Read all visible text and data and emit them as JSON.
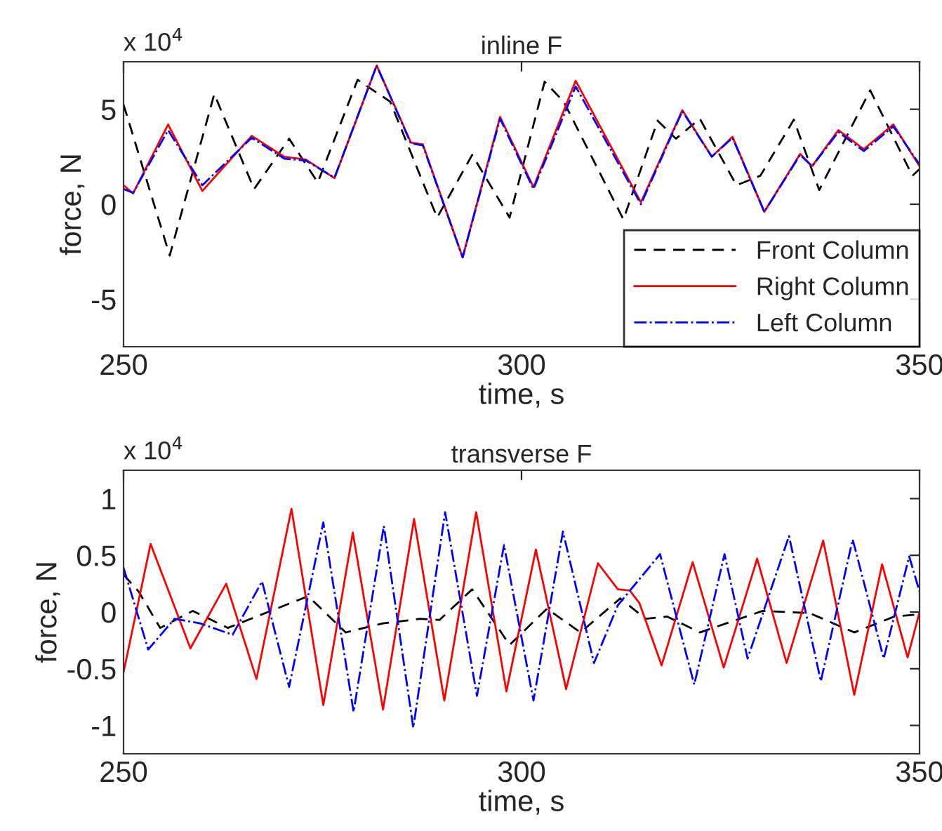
{
  "chart_data": [
    {
      "type": "line",
      "title": "inline F",
      "xlabel": "time, s",
      "ylabel": "force, N",
      "annotations": [
        "x 10$^{4}$"
      ],
      "xlim": [
        250,
        350
      ],
      "xticks": [
        250,
        300,
        350
      ],
      "ylim": [
        -7.5,
        7.5
      ],
      "yticks": [
        -5,
        0,
        5
      ],
      "legend": "bottom right",
      "grid": false,
      "series": [
        {
          "name": "Front Column",
          "color": "#000000",
          "line_style": "dashed",
          "x": [
            250,
            255.8,
            261.4,
            266.4,
            270.8,
            274.4,
            279.4,
            283.5,
            289.4,
            293.8,
            298.5,
            302.9,
            305.3,
            312.8,
            317.1,
            319.4,
            322.4,
            327.0,
            330.0,
            334.2,
            337.4,
            343.8,
            349.1,
            350
          ],
          "values": [
            5.25,
            -2.7,
            5.8,
            0.8,
            3.45,
            1.15,
            6.55,
            5.4,
            -0.7,
            2.6,
            -0.7,
            6.45,
            5.4,
            -0.8,
            4.4,
            3.45,
            4.5,
            1.0,
            1.5,
            4.45,
            0.75,
            6.0,
            1.5,
            1.85
          ]
        },
        {
          "name": "Right Column",
          "color": "#ff0000",
          "line_style": "solid",
          "x": [
            250,
            251.2,
            255.6,
            259.9,
            266.1,
            270.2,
            272.9,
            276.5,
            281.8,
            286.1,
            287.6,
            292.6,
            297.3,
            301.5,
            306.8,
            315.0,
            320.2,
            323.9,
            326.5,
            330.5,
            335.0,
            336.5,
            339.8,
            343.0,
            346.7,
            350
          ],
          "values": [
            1.0,
            0.57,
            4.2,
            0.7,
            3.6,
            2.5,
            2.35,
            1.37,
            7.3,
            3.25,
            3.15,
            -2.8,
            4.6,
            0.9,
            6.5,
            0.1,
            4.95,
            2.5,
            3.55,
            -0.4,
            2.65,
            2.0,
            3.9,
            2.9,
            4.2,
            2.0
          ]
        },
        {
          "name": "Left Column",
          "color": "#0000ff",
          "line_style": "dashdot",
          "x": [
            250,
            251.2,
            255.6,
            259.9,
            266.1,
            270.2,
            272.9,
            276.5,
            281.8,
            286.1,
            287.6,
            292.6,
            297.3,
            301.5,
            306.8,
            315.0,
            320.2,
            323.9,
            326.5,
            330.5,
            335.0,
            336.5,
            339.8,
            343.0,
            346.7,
            350
          ],
          "values": [
            0.8,
            0.6,
            3.9,
            1.0,
            3.5,
            2.4,
            2.3,
            1.4,
            7.3,
            3.2,
            3.1,
            -2.8,
            4.5,
            0.8,
            6.2,
            0.0,
            4.9,
            2.5,
            3.5,
            -0.4,
            2.6,
            2.0,
            3.8,
            2.8,
            4.1,
            2.1
          ]
        }
      ]
    },
    {
      "type": "line",
      "title": "transverse F",
      "xlabel": "time, s",
      "ylabel": "force, N",
      "annotations": [
        "x 10$^{4}$"
      ],
      "xlim": [
        250,
        350
      ],
      "xticks": [
        250,
        300,
        350
      ],
      "ylim": [
        -1.25,
        1.25
      ],
      "yticks": [
        -1,
        -0.5,
        0,
        0.5,
        1
      ],
      "legend": false,
      "grid": false,
      "series": [
        {
          "color": "#000000",
          "line_style": "dashed",
          "x": [
            250,
            251.9,
            254.6,
            258.7,
            263.1,
            273.2,
            277.9,
            282.6,
            287.3,
            289.7,
            293.8,
            298.5,
            303.2,
            307.4,
            312.4,
            315.6,
            318.3,
            322.4,
            330.3,
            336.2,
            341.8,
            346.8,
            350
          ],
          "values": [
            0.33,
            0.18,
            -0.14,
            0.01,
            -0.14,
            0.14,
            -0.18,
            -0.1,
            -0.06,
            -0.07,
            0.2,
            -0.29,
            0.03,
            -0.18,
            0.12,
            -0.06,
            -0.04,
            -0.18,
            0.01,
            -0.01,
            -0.18,
            -0.04,
            -0.02
          ]
        },
        {
          "color": "#ff0000",
          "line_style": "solid",
          "x": [
            250,
            253.4,
            258.4,
            262.9,
            266.7,
            271.1,
            275.1,
            278.8,
            282.6,
            286.5,
            290.3,
            294.3,
            298.1,
            301.8,
            305.6,
            309.6,
            312.1,
            313.6,
            314.8,
            317.6,
            321.5,
            325.4,
            329.6,
            333.3,
            337.9,
            341.8,
            345.3,
            348.5,
            350
          ],
          "values": [
            -0.53,
            0.6,
            -0.32,
            0.25,
            -0.59,
            0.91,
            -0.82,
            0.7,
            -0.86,
            0.82,
            -0.78,
            0.88,
            -0.7,
            0.55,
            -0.68,
            0.43,
            0.2,
            0.19,
            0.08,
            -0.47,
            0.44,
            -0.49,
            0.47,
            -0.45,
            0.63,
            -0.73,
            0.42,
            -0.4,
            0.0
          ]
        },
        {
          "color": "#0000ff",
          "line_style": "dashdot",
          "x": [
            250,
            253.1,
            256.4,
            259.6,
            263.7,
            267.4,
            270.8,
            275.1,
            278.9,
            282.7,
            286.4,
            290.4,
            294.4,
            297.8,
            301.5,
            305.2,
            309.1,
            312.1,
            317.4,
            321.7,
            325.5,
            328.4,
            333.6,
            337.6,
            341.6,
            345.5,
            348.7,
            350
          ],
          "values": [
            0.39,
            -0.33,
            -0.06,
            -0.1,
            -0.2,
            0.27,
            -0.66,
            0.79,
            -0.88,
            0.76,
            -1.02,
            0.88,
            -0.74,
            0.59,
            -0.78,
            0.71,
            -0.45,
            0.06,
            0.51,
            -0.64,
            0.51,
            -0.41,
            0.67,
            -0.61,
            0.64,
            -0.41,
            0.49,
            0.18
          ]
        }
      ]
    }
  ]
}
